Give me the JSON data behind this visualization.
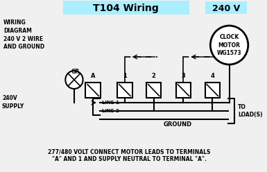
{
  "title": "T104 Wiring",
  "title_bg": "#aaeeff",
  "bg_color": "#f0f0f0",
  "text_wiring_diagram": "WIRING\nDIAGRAM\n240 V 2 WIRE\nAND GROUND",
  "text_240v_label": "240 V",
  "text_clock_motor": "CLOCK\nMOTOR\nWG1573",
  "text_240v_supply": "240V\nSUPPLY",
  "text_to_loads": "TO\nLOAD(S)",
  "text_ground": "GROUND",
  "text_footnote": "277/480 VOLT CONNECT MOTOR LEADS TO TERMINALS\n\"A\" AND 1 AND SUPPLY NEUTRAL TO TERMINAL \"A\".",
  "terminal_labels_above": [
    "A",
    "1",
    "2",
    "3",
    "4"
  ],
  "gr_label": "GR"
}
